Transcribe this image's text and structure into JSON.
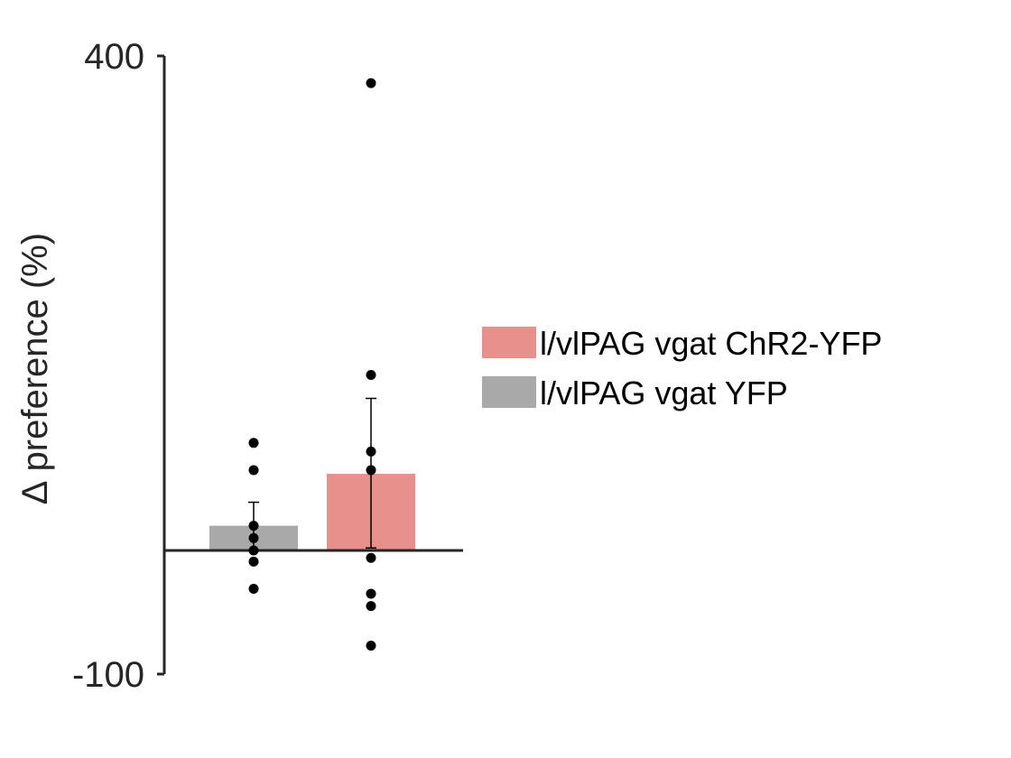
{
  "chart_data": {
    "type": "bar",
    "ylabel": "∆ preference (%)",
    "ylim": [
      -100,
      400
    ],
    "yticks": [
      -100,
      400
    ],
    "ytick_labels": [
      "-100",
      "400"
    ],
    "legend_position": "right",
    "series": [
      {
        "name": "l/vlPAG vgat ChR2-YFP",
        "color": "#e8908c",
        "mean": 62,
        "error": [
          2,
          123
        ],
        "points": [
          378,
          142,
          80,
          65,
          -6,
          -35,
          -45,
          -77
        ]
      },
      {
        "name": "l/vlPAG vgat YFP",
        "color": "#a9a9a9",
        "mean": 20,
        "error": [
          0,
          39
        ],
        "points": [
          87,
          65,
          20,
          10,
          0,
          -9,
          -31
        ]
      }
    ],
    "bar_order": [
      "l/vlPAG vgat YFP",
      "l/vlPAG vgat ChR2-YFP"
    ]
  }
}
